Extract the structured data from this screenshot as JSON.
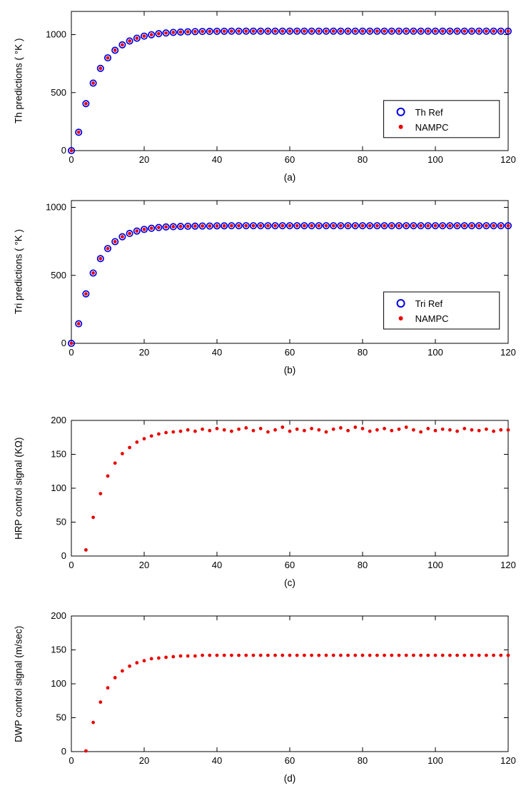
{
  "figure": {
    "background": "#ffffff"
  },
  "chart_data": [
    {
      "id": "a",
      "type": "scatter",
      "caption": "(a)",
      "ylabel": "Th predictions ( °K )",
      "xlabel": "",
      "xlim": [
        0,
        120
      ],
      "ylim": [
        0,
        1200
      ],
      "x_ticks": [
        0,
        20,
        40,
        60,
        80,
        100,
        120
      ],
      "y_ticks": [
        0,
        500,
        1000
      ],
      "grid": false,
      "legend": {
        "visible": true,
        "position": "right-lower"
      },
      "series": [
        {
          "name": "Th Ref",
          "marker": "circle-open",
          "color": "#0000e0",
          "x_start": 0,
          "x_step": 2,
          "values": [
            0,
            158,
            405,
            582,
            709,
            800,
            865,
            912,
            945,
            969,
            987,
            999,
            1008,
            1014,
            1019,
            1022,
            1024,
            1026,
            1027,
            1028,
            1029,
            1029,
            1030,
            1030,
            1030,
            1030,
            1030,
            1030,
            1030,
            1030,
            1030,
            1030,
            1030,
            1030,
            1030,
            1030,
            1030,
            1030,
            1030,
            1030,
            1030,
            1030,
            1030,
            1030,
            1030,
            1030,
            1030,
            1030,
            1030,
            1030,
            1030,
            1030,
            1030,
            1030,
            1030,
            1030,
            1030,
            1030,
            1030,
            1030,
            1030
          ]
        },
        {
          "name": "NAMPC",
          "marker": "dot",
          "color": "#e80000",
          "x_start": 0,
          "x_step": 2,
          "values": [
            0,
            158,
            405,
            582,
            709,
            800,
            865,
            912,
            945,
            969,
            987,
            999,
            1008,
            1014,
            1019,
            1022,
            1024,
            1026,
            1027,
            1028,
            1029,
            1029,
            1030,
            1030,
            1030,
            1030,
            1030,
            1030,
            1030,
            1030,
            1030,
            1030,
            1030,
            1030,
            1030,
            1030,
            1030,
            1030,
            1030,
            1030,
            1030,
            1030,
            1030,
            1030,
            1030,
            1030,
            1030,
            1030,
            1030,
            1030,
            1030,
            1030,
            1030,
            1030,
            1030,
            1030,
            1030,
            1030,
            1030,
            1030,
            1030
          ]
        }
      ]
    },
    {
      "id": "b",
      "type": "scatter",
      "caption": "(b)",
      "ylabel": "Tri predictions ( °K )",
      "xlabel": "",
      "xlim": [
        0,
        120
      ],
      "ylim": [
        0,
        1050
      ],
      "x_ticks": [
        0,
        20,
        40,
        60,
        80,
        100,
        120
      ],
      "y_ticks": [
        0,
        500,
        1000
      ],
      "grid": false,
      "legend": {
        "visible": true,
        "position": "right-lower"
      },
      "series": [
        {
          "name": "Tri Ref",
          "marker": "circle-open",
          "color": "#0000e0",
          "x_start": 0,
          "x_step": 2,
          "values": [
            0,
            144,
            364,
            517,
            623,
            697,
            748,
            784,
            808,
            826,
            838,
            846,
            852,
            856,
            858,
            860,
            861,
            862,
            863,
            863,
            864,
            864,
            865,
            865,
            865,
            865,
            865,
            865,
            865,
            865,
            865,
            865,
            865,
            865,
            865,
            865,
            865,
            865,
            865,
            865,
            865,
            865,
            865,
            865,
            865,
            865,
            865,
            865,
            865,
            865,
            865,
            865,
            865,
            865,
            865,
            865,
            865,
            865,
            865,
            865,
            865
          ]
        },
        {
          "name": "NAMPC",
          "marker": "dot",
          "color": "#e80000",
          "x_start": 0,
          "x_step": 2,
          "values": [
            0,
            144,
            364,
            517,
            623,
            697,
            748,
            784,
            808,
            826,
            838,
            846,
            852,
            856,
            858,
            860,
            861,
            862,
            863,
            863,
            864,
            864,
            865,
            865,
            865,
            865,
            865,
            865,
            865,
            865,
            865,
            865,
            865,
            865,
            865,
            865,
            865,
            865,
            865,
            865,
            865,
            865,
            865,
            865,
            865,
            865,
            865,
            865,
            865,
            865,
            865,
            865,
            865,
            865,
            865,
            865,
            865,
            865,
            865,
            865,
            865
          ]
        }
      ]
    },
    {
      "id": "c",
      "type": "scatter",
      "caption": "(c)",
      "ylabel": "HRP control signal (KΩ)",
      "xlabel": "",
      "xlim": [
        0,
        120
      ],
      "ylim": [
        0,
        200
      ],
      "x_ticks": [
        0,
        20,
        40,
        60,
        80,
        100,
        120
      ],
      "y_ticks": [
        0,
        50,
        100,
        150,
        200
      ],
      "grid": false,
      "legend": {
        "visible": false,
        "position": ""
      },
      "series": [
        {
          "name": "NAMPC",
          "marker": "dot",
          "color": "#e80000",
          "x_start": 4,
          "x_step": 2,
          "values": [
            9,
            57,
            92,
            118,
            137,
            151,
            160,
            168,
            173,
            177,
            180,
            182,
            183,
            184,
            186,
            184,
            187,
            185,
            188,
            186,
            184,
            187,
            189,
            185,
            188,
            183,
            186,
            190,
            184,
            187,
            185,
            188,
            186,
            183,
            187,
            189,
            185,
            190,
            188,
            184,
            186,
            188,
            185,
            187,
            190,
            186,
            183,
            188,
            185,
            187,
            186,
            184,
            188,
            186,
            185,
            187,
            184,
            186,
            186
          ]
        }
      ]
    },
    {
      "id": "d",
      "type": "scatter",
      "caption": "(d)",
      "ylabel": "DWP control signal (m/sec)",
      "xlabel": "",
      "xlim": [
        0,
        120
      ],
      "ylim": [
        0,
        200
      ],
      "x_ticks": [
        0,
        20,
        40,
        60,
        80,
        100,
        120
      ],
      "y_ticks": [
        0,
        50,
        100,
        150,
        200
      ],
      "grid": false,
      "legend": {
        "visible": false,
        "position": ""
      },
      "series": [
        {
          "name": "NAMPC",
          "marker": "dot",
          "color": "#e80000",
          "x_start": 4,
          "x_step": 2,
          "values": [
            1,
            43,
            73,
            94,
            109,
            119,
            126,
            131,
            134,
            137,
            138,
            139,
            140,
            141,
            141,
            141,
            142,
            142,
            142,
            142,
            142,
            142,
            142,
            142,
            142,
            142,
            142,
            142,
            142,
            142,
            142,
            142,
            142,
            142,
            142,
            142,
            142,
            142,
            142,
            142,
            142,
            142,
            142,
            142,
            142,
            142,
            142,
            142,
            142,
            142,
            142,
            142,
            142,
            142,
            142,
            142,
            142,
            142,
            142
          ]
        }
      ]
    }
  ]
}
